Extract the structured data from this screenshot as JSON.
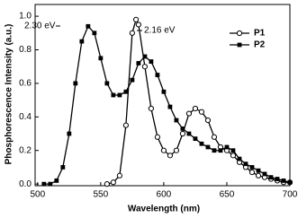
{
  "chart_data": {
    "type": "line",
    "x_label": "Wavelength (nm)",
    "y_label": "Phosphorescence Intensity (a.u.)",
    "annotations": [
      "2.30 eV",
      "2.16 eV"
    ],
    "xlim": [
      498,
      700
    ],
    "ylim": [
      -0.01,
      1.07
    ],
    "xticks": [
      500,
      550,
      600,
      650,
      700
    ],
    "yticks": [
      {
        "value": 0,
        "label": "0.0"
      },
      0.2,
      0.4,
      0.6,
      0.8,
      {
        "value": 1,
        "label": "1.0"
      }
    ],
    "legend": "upper right",
    "series": [
      {
        "name": "P1",
        "color": "#000000",
        "marker": "circle",
        "x": [
          555,
          560,
          565,
          570,
          575,
          578,
          580,
          585,
          590,
          595,
          600,
          605,
          610,
          615,
          620,
          625,
          630,
          635,
          640,
          645,
          650,
          655,
          660,
          665,
          670,
          675,
          680,
          685,
          690,
          695,
          700
        ],
        "values": [
          0,
          0.01,
          0.05,
          0.35,
          0.9,
          0.98,
          0.95,
          0.7,
          0.45,
          0.28,
          0.2,
          0.17,
          0.2,
          0.3,
          0.42,
          0.45,
          0.43,
          0.38,
          0.28,
          0.22,
          0.2,
          0.17,
          0.13,
          0.1,
          0.07,
          0.05,
          0.04,
          0.03,
          0.02,
          0.01,
          0.01
        ]
      },
      {
        "name": "P2",
        "color": "#000000",
        "marker": "square",
        "x": [
          505,
          510,
          515,
          520,
          525,
          530,
          535,
          540,
          545,
          550,
          555,
          560,
          565,
          570,
          575,
          580,
          585,
          590,
          595,
          600,
          605,
          610,
          615,
          620,
          625,
          630,
          635,
          640,
          645,
          650,
          655,
          660,
          665,
          670,
          675,
          680,
          685,
          690,
          695,
          700
        ],
        "values": [
          0,
          0,
          0.02,
          0.1,
          0.3,
          0.6,
          0.85,
          0.94,
          0.9,
          0.75,
          0.6,
          0.53,
          0.53,
          0.55,
          0.62,
          0.72,
          0.76,
          0.73,
          0.65,
          0.55,
          0.46,
          0.38,
          0.33,
          0.3,
          0.27,
          0.24,
          0.22,
          0.2,
          0.2,
          0.22,
          0.2,
          0.15,
          0.12,
          0.1,
          0.08,
          0.06,
          0.04,
          0.03,
          0.02,
          0.01
        ]
      }
    ]
  }
}
